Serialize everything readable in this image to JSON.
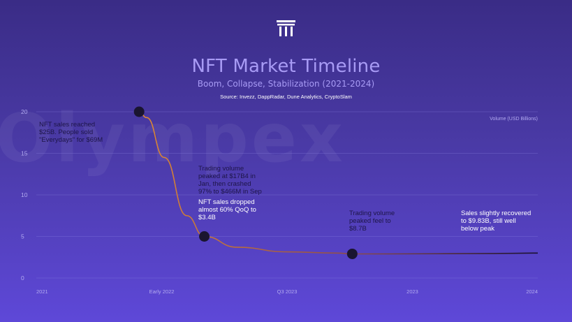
{
  "watermark": "Olympex",
  "header": {
    "logo_icon": "pillar-logo-icon",
    "title": "NFT Market Timeline",
    "subtitle": "Boom, Collapse, Stabilization (2021-2024)",
    "source": "Source: Invezz, DappRadar, Dune Analytics, CryptoSlam"
  },
  "colors": {
    "curve_high": "#e08a32",
    "curve_low": "#1a1030",
    "marker": "#1a1530",
    "grid": "#8f86e6",
    "axis_text": "#b3abf0"
  },
  "chart_data": {
    "type": "line",
    "ylabel": "Volume (USD Billions)",
    "ylim": [
      0,
      20
    ],
    "yticks": [
      0,
      5,
      10,
      15,
      20
    ],
    "x_ticks": [
      "2021",
      "Early 2022",
      "Q3 2023",
      "2023",
      "2024"
    ],
    "grid": true,
    "series": [
      {
        "values": [
          20,
          19.3,
          14.5,
          7.5,
          5,
          3.7,
          3.15,
          3,
          2.9,
          2.9,
          2.92,
          2.95,
          2.97,
          3.0
        ],
        "x": [
          0.205,
          0.22,
          0.255,
          0.3,
          0.335,
          0.4,
          0.5,
          0.6,
          0.63,
          0.7,
          0.8,
          0.9,
          0.95,
          1.0
        ]
      }
    ],
    "markers": [
      {
        "x": 0.205,
        "y": 20
      },
      {
        "x": 0.335,
        "y": 5
      },
      {
        "x": 0.63,
        "y": 2.9
      }
    ],
    "annotations": [
      "NFT sales reached\n$25B. People sold\n\"Everydays\" for $69M",
      "Trading volume\npeaked at $17B4 in\nJan, then crashed\n97% to $466M in Sep",
      "NFT sales dropped\nalmost 60% QoQ to\n$3.4B",
      "Trading volume\npeaked feel to\n$8.7B",
      "Sales slightly recovered\nto $9.83B, still well\nbelow peak"
    ]
  }
}
